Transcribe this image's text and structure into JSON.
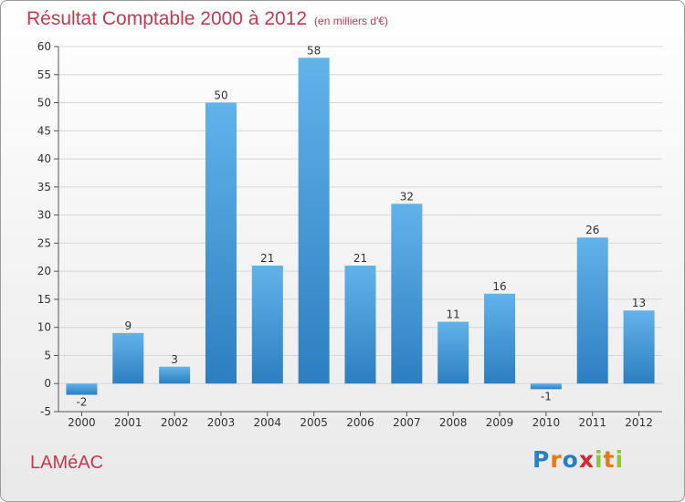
{
  "page": {
    "title": "Résultat Comptable 2000 à 2012",
    "subtitle": "(en milliers d'€)",
    "commune": "LAMéAC",
    "logo": "Proxiti"
  },
  "colors": {
    "title": "#c8384f",
    "bar_top": "#62b2ea",
    "bar_bottom": "#2c7fc0",
    "grid": "#d6d6d6",
    "axis": "#555555",
    "logo": [
      "#2b7ec1",
      "#e07a1c",
      "#2b7ec1",
      "#d8262e",
      "#8cc63f",
      "#e07a1c",
      "#8cc63f"
    ]
  },
  "chart_data": {
    "type": "bar",
    "title": "Résultat Comptable 2000 à 2012",
    "xlabel": "",
    "ylabel": "",
    "categories": [
      "2000",
      "2001",
      "2002",
      "2003",
      "2004",
      "2005",
      "2006",
      "2007",
      "2008",
      "2009",
      "2010",
      "2011",
      "2012"
    ],
    "values": [
      -2,
      9,
      3,
      50,
      21,
      58,
      21,
      32,
      11,
      16,
      -1,
      26,
      13
    ],
    "labels": [
      "-2",
      "9",
      "3",
      "50",
      "21",
      "58",
      "21",
      "32",
      "11",
      "16",
      "-1",
      "26",
      "13"
    ],
    "yticks": [
      -5,
      0,
      5,
      10,
      15,
      20,
      25,
      30,
      35,
      40,
      45,
      50,
      55,
      60
    ],
    "ylim": [
      -5,
      60
    ],
    "grid": true,
    "legend": "none"
  }
}
